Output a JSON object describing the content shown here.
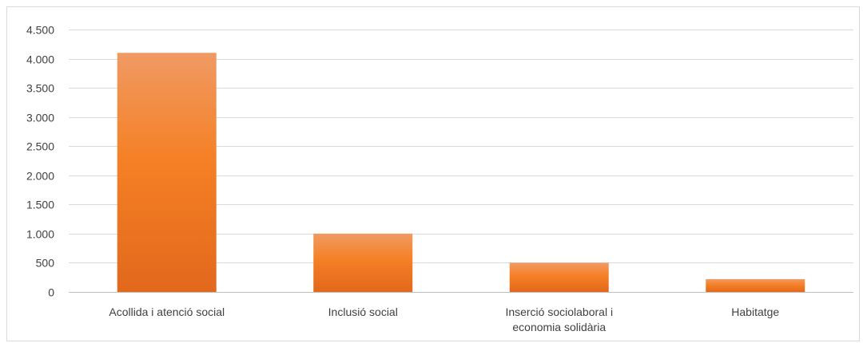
{
  "chart_data": {
    "type": "bar",
    "categories": [
      [
        "Acollida i atenció social"
      ],
      [
        "Inclusió social"
      ],
      [
        "Inserció sociolaboral i",
        "economia solidària"
      ],
      [
        "Habitatge"
      ]
    ],
    "values": [
      4100,
      1000,
      500,
      220
    ],
    "ylim": [
      0,
      4500
    ],
    "yticks": [
      0,
      500,
      1000,
      1500,
      2000,
      2500,
      3000,
      3500,
      4000,
      4500
    ],
    "ytick_labels": [
      "0",
      "500",
      "1.000",
      "1.500",
      "2.000",
      "2.500",
      "3.000",
      "3.500",
      "4.000",
      "4.500"
    ],
    "grid": true,
    "colors": {
      "bar_top": "#f09a63",
      "bar_mid": "#f58025",
      "bar_bottom": "#e2681c",
      "grid": "#d9d9d9",
      "axis": "#bfbfbf",
      "text": "#404040"
    }
  }
}
